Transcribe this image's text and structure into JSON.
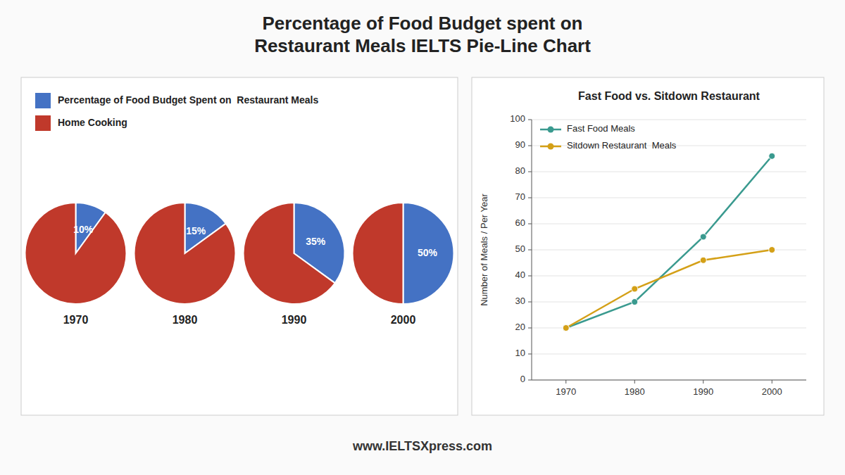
{
  "title": "Percentage of Food Budget spent on\nRestaurant Meals IELTS Pie-Line Chart",
  "annotations": [
    "www.IELTSXpress.com"
  ],
  "chart_data": [
    {
      "type": "pie",
      "categories": [
        1970,
        1980,
        1990,
        2000
      ],
      "series": [
        {
          "name": "Percentage of Food Budget Spent on  Restaurant Meals",
          "color": "#4472c4",
          "values": [
            10,
            15,
            35,
            50
          ],
          "data_labels": true,
          "value_labels": [
            "10%",
            "15%",
            "35%",
            "50%"
          ]
        },
        {
          "name": "Home Cooking",
          "color": "#c0392b",
          "values": [
            90,
            85,
            65,
            50
          ]
        }
      ]
    },
    {
      "type": "line",
      "title": "Fast Food vs. Sitdown Restaurant",
      "y_label": "Number of Meals / Per Year",
      "x": [
        1970,
        1980,
        1990,
        2000
      ],
      "xlim": [
        1965,
        2005
      ],
      "xticks": [
        1970,
        1980,
        1990,
        2000
      ],
      "ylim": [
        0,
        100
      ],
      "yticks": [
        0,
        10,
        20,
        30,
        40,
        50,
        60,
        70,
        80,
        90,
        100
      ],
      "grid": "y",
      "legend": "upper left",
      "series": [
        {
          "name": "Fast Food Meals",
          "color": "#3a9a8f",
          "marker": "circle",
          "values": [
            20,
            30,
            55,
            86
          ]
        },
        {
          "name": "Sitdown Restaurant  Meals",
          "color": "#d4a017",
          "marker": "circle",
          "values": [
            20,
            35,
            46,
            50
          ]
        }
      ]
    }
  ]
}
